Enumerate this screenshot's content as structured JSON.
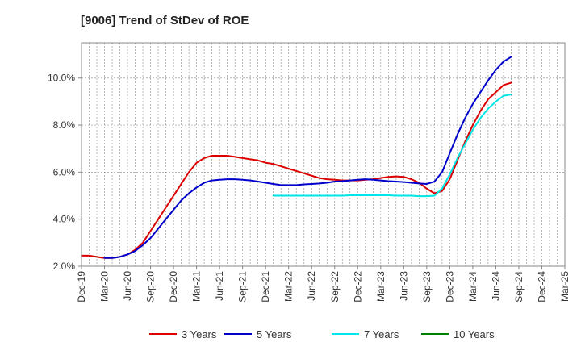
{
  "chart_data": {
    "type": "line",
    "title": "[9006]  Trend of StDev of ROE",
    "xlabel": "",
    "ylabel": "",
    "x_ticks": [
      "Dec-19",
      "Mar-20",
      "Jun-20",
      "Sep-20",
      "Dec-20",
      "Mar-21",
      "Jun-21",
      "Sep-21",
      "Dec-21",
      "Mar-22",
      "Jun-22",
      "Sep-22",
      "Dec-22",
      "Mar-23",
      "Jun-23",
      "Sep-23",
      "Dec-23",
      "Mar-24",
      "Jun-24",
      "Sep-24",
      "Dec-24",
      "Mar-25"
    ],
    "y_ticks": [
      "2.0%",
      "4.0%",
      "6.0%",
      "8.0%",
      "10.0%"
    ],
    "y_tick_values": [
      2,
      4,
      6,
      8,
      10
    ],
    "ylim": [
      2.0,
      11.5
    ],
    "grid": true,
    "legend_position": "bottom",
    "series": [
      {
        "name": "3 Years",
        "color": "#dd0000",
        "x_start": 0,
        "values": [
          2.45,
          2.45,
          2.4,
          2.35,
          2.35,
          2.4,
          2.5,
          2.7,
          3.0,
          3.5,
          4.0,
          4.5,
          5.0,
          5.5,
          6.0,
          6.4,
          6.6,
          6.7,
          6.7,
          6.7,
          6.65,
          6.6,
          6.55,
          6.5,
          6.4,
          6.35,
          6.25,
          6.15,
          6.05,
          5.95,
          5.85,
          5.75,
          5.7,
          5.68,
          5.65,
          5.65,
          5.65,
          5.68,
          5.7,
          5.75,
          5.8,
          5.82,
          5.8,
          5.7,
          5.55,
          5.3,
          5.1,
          5.2,
          5.7,
          6.5,
          7.3,
          8.0,
          8.6,
          9.1,
          9.4,
          9.7,
          9.8
        ]
      },
      {
        "name": "5 Years",
        "color": "#0000cc",
        "x_start": 0,
        "values": [
          null,
          null,
          null,
          2.35,
          2.35,
          2.4,
          2.5,
          2.65,
          2.9,
          3.2,
          3.6,
          4.0,
          4.4,
          4.8,
          5.1,
          5.35,
          5.55,
          5.65,
          5.68,
          5.7,
          5.7,
          5.68,
          5.65,
          5.6,
          5.55,
          5.5,
          5.45,
          5.45,
          5.45,
          5.48,
          5.5,
          5.52,
          5.55,
          5.6,
          5.62,
          5.65,
          5.68,
          5.7,
          5.68,
          5.65,
          5.62,
          5.6,
          5.58,
          5.55,
          5.52,
          5.5,
          5.6,
          6.0,
          6.8,
          7.6,
          8.3,
          8.9,
          9.4,
          9.9,
          10.35,
          10.7,
          10.9
        ]
      },
      {
        "name": "7 Years",
        "color": "#00e5e5",
        "x_start": 0,
        "values": [
          null,
          null,
          null,
          null,
          null,
          null,
          null,
          null,
          null,
          null,
          null,
          null,
          null,
          null,
          null,
          null,
          null,
          null,
          null,
          null,
          null,
          null,
          null,
          null,
          null,
          5.0,
          5.0,
          5.0,
          5.0,
          5.0,
          5.0,
          5.0,
          5.0,
          5.0,
          5.0,
          5.02,
          5.02,
          5.02,
          5.02,
          5.02,
          5.02,
          5.0,
          5.0,
          5.0,
          4.98,
          4.98,
          5.0,
          5.3,
          5.9,
          6.6,
          7.2,
          7.8,
          8.3,
          8.7,
          9.0,
          9.25,
          9.3
        ]
      },
      {
        "name": "10 Years",
        "color": "#008000",
        "x_start": 0,
        "values": []
      }
    ]
  }
}
